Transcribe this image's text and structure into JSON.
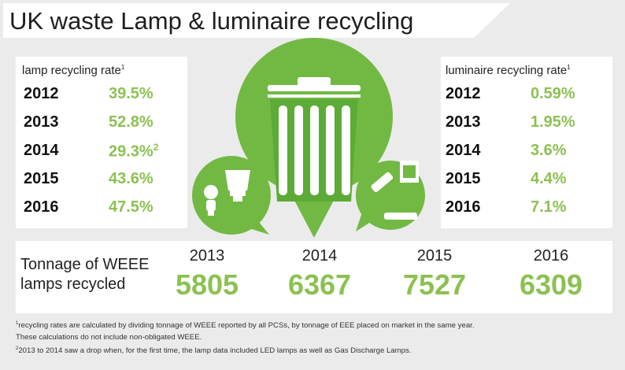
{
  "title": "UK waste Lamp & luminaire recycling",
  "lamp_panel": {
    "label": "lamp recycling rate",
    "label_note": "1",
    "rows": [
      {
        "year": "2012",
        "value": "39.5%",
        "note": ""
      },
      {
        "year": "2013",
        "value": "52.8%",
        "note": ""
      },
      {
        "year": "2014",
        "value": "29.3%",
        "note": "2"
      },
      {
        "year": "2015",
        "value": "43.6%",
        "note": ""
      },
      {
        "year": "2016",
        "value": "47.5%",
        "note": ""
      }
    ]
  },
  "luminaire_panel": {
    "label": "luminaire recycling rate",
    "label_note": "1",
    "rows": [
      {
        "year": "2012",
        "value": "0.59%",
        "note": ""
      },
      {
        "year": "2013",
        "value": "1.95%",
        "note": ""
      },
      {
        "year": "2014",
        "value": "3.6%",
        "note": ""
      },
      {
        "year": "2015",
        "value": "4.4%",
        "note": ""
      },
      {
        "year": "2016",
        "value": "7.1%",
        "note": ""
      }
    ]
  },
  "tonnage": {
    "label_line1": "Tonnage of WEEE",
    "label_line2": "lamps recycled"
  },
  "chart_data": [
    {
      "type": "table",
      "title": "lamp recycling rate",
      "categories": [
        "2012",
        "2013",
        "2014",
        "2015",
        "2016"
      ],
      "values": [
        39.5,
        52.8,
        29.3,
        43.6,
        47.5
      ]
    },
    {
      "type": "table",
      "title": "luminaire recycling rate",
      "categories": [
        "2012",
        "2013",
        "2014",
        "2015",
        "2016"
      ],
      "values": [
        0.59,
        1.95,
        3.6,
        4.4,
        7.1
      ]
    },
    {
      "type": "table",
      "title": "Tonnage of WEEE lamps recycled",
      "categories": [
        "2013",
        "2014",
        "2015",
        "2016"
      ],
      "values": [
        5805,
        6367,
        7527,
        6309
      ]
    }
  ],
  "footnotes": {
    "note1_marker": "1",
    "note1_text": "recycling rates are calculated by dividing tonnage of WEEE reported by all PCSs, by tonnage of EEE placed on market in the same year.",
    "note1_line2": "These calculations do not include non-obligated WEEE.",
    "note2_marker": "2",
    "note2_text": "2013 to 2014 saw a drop when, for the first time, the lamp data included LED lamps as well as Gas Discharge Lamps."
  },
  "colors": {
    "accent": "#8cc152",
    "bin_dark": "#5cab37",
    "bubble": "#72b944"
  },
  "icons": [
    "recycling-bin-icon",
    "fluorescent-tube-icon",
    "cfl-bulb-icon",
    "led-spotlight-icon",
    "luminaire-icon"
  ]
}
